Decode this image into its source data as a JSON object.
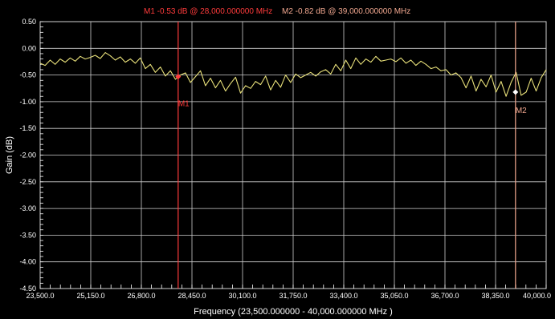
{
  "chart_data": {
    "type": "line",
    "xlabel": "Frequency (23,500.000000 - 40,000.000000 MHz )",
    "ylabel": "Gain (dB)",
    "xlim": [
      23500,
      40000
    ],
    "ylim": [
      -4.5,
      0.5
    ],
    "x_ticks": [
      23500,
      25150,
      26800,
      28450,
      30100,
      31750,
      33400,
      35050,
      36700,
      38350,
      40000
    ],
    "x_tick_labels": [
      "23,500.0",
      "25,150.0",
      "26,800.0",
      "28,450.0",
      "30,100.0",
      "31,750.0",
      "33,400.0",
      "35,050.0",
      "36,700.0",
      "38,350.0",
      "40,000.0"
    ],
    "y_ticks": [
      0.5,
      0.0,
      -0.5,
      -1.0,
      -1.5,
      -2.0,
      -2.5,
      -3.0,
      -3.5,
      -4.0,
      -4.5
    ],
    "y_tick_labels": [
      "0.50",
      "0.00",
      "-0.50",
      "-1.00",
      "-1.50",
      "-2.00",
      "-2.50",
      "-3.00",
      "-3.50",
      "-4.00",
      "-4.50"
    ],
    "grid": true,
    "series": [
      {
        "color": "#e8e07a",
        "x": [
          23500,
          23663,
          23827,
          23990,
          24153,
          24317,
          24480,
          24644,
          24807,
          24970,
          25134,
          25297,
          25460,
          25624,
          25787,
          25950,
          26114,
          26277,
          26441,
          26604,
          26767,
          26931,
          27094,
          27257,
          27421,
          27584,
          27748,
          27911,
          28074,
          28238,
          28401,
          28564,
          28728,
          28891,
          29054,
          29218,
          29381,
          29545,
          29708,
          29871,
          30035,
          30198,
          30361,
          30525,
          30688,
          30851,
          31015,
          31178,
          31342,
          31505,
          31668,
          31832,
          31995,
          32158,
          32322,
          32485,
          32649,
          32812,
          32975,
          33139,
          33302,
          33465,
          33629,
          33792,
          33955,
          34119,
          34282,
          34446,
          34609,
          34772,
          34936,
          35099,
          35262,
          35426,
          35589,
          35753,
          35916,
          36079,
          36243,
          36406,
          36569,
          36733,
          36896,
          37059,
          37223,
          37386,
          37550,
          37713,
          37876,
          38040,
          38203,
          38366,
          38530,
          38693,
          38856,
          39020,
          39183,
          39347,
          39510,
          39673,
          39837,
          40000
        ],
        "y": [
          -0.28,
          -0.32,
          -0.22,
          -0.3,
          -0.2,
          -0.26,
          -0.18,
          -0.24,
          -0.15,
          -0.2,
          -0.17,
          -0.13,
          -0.19,
          -0.08,
          -0.14,
          -0.22,
          -0.16,
          -0.26,
          -0.2,
          -0.28,
          -0.18,
          -0.38,
          -0.3,
          -0.45,
          -0.35,
          -0.52,
          -0.42,
          -0.58,
          -0.5,
          -0.46,
          -0.64,
          -0.53,
          -0.42,
          -0.7,
          -0.56,
          -0.74,
          -0.6,
          -0.8,
          -0.66,
          -0.54,
          -0.84,
          -0.7,
          -0.75,
          -0.62,
          -0.68,
          -0.52,
          -0.78,
          -0.6,
          -0.73,
          -0.5,
          -0.64,
          -0.48,
          -0.55,
          -0.5,
          -0.45,
          -0.52,
          -0.44,
          -0.4,
          -0.48,
          -0.3,
          -0.42,
          -0.22,
          -0.38,
          -0.18,
          -0.3,
          -0.2,
          -0.26,
          -0.15,
          -0.24,
          -0.22,
          -0.2,
          -0.25,
          -0.18,
          -0.28,
          -0.22,
          -0.32,
          -0.24,
          -0.3,
          -0.38,
          -0.35,
          -0.42,
          -0.4,
          -0.5,
          -0.46,
          -0.55,
          -0.74,
          -0.52,
          -0.8,
          -0.58,
          -0.72,
          -0.5,
          -0.82,
          -0.62,
          -0.9,
          -0.64,
          -0.45,
          -0.88,
          -0.82,
          -0.56,
          -0.8,
          -0.55,
          -0.4
        ]
      }
    ],
    "markers": [
      {
        "id": "M1",
        "label": "M1",
        "x": 28000,
        "y": -0.53,
        "color": "#ff3b3b",
        "readout": "M1  -0.53 dB @ 28,000.000000 MHz"
      },
      {
        "id": "M2",
        "label": "M2",
        "x": 39000,
        "y": -0.82,
        "color": "#f2a890",
        "readout": "M2  -0.82 dB @ 39,000.000000 MHz"
      }
    ]
  }
}
